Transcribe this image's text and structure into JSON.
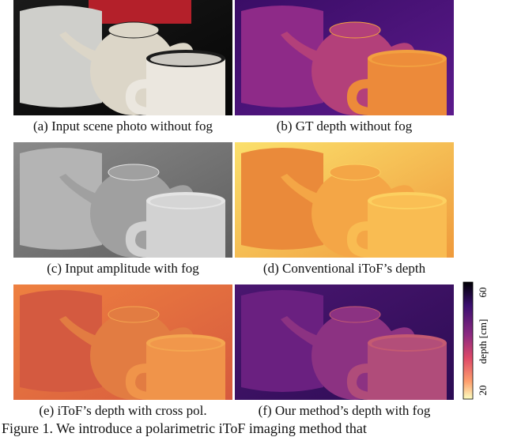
{
  "panels": [
    {
      "caption": "(a) Input scene photo without fog"
    },
    {
      "caption": "(b) GT depth without fog"
    },
    {
      "caption": "(c) Input amplitude with fog"
    },
    {
      "caption": "(d) Conventional iToF’s depth"
    },
    {
      "caption": "(e) iToF’s depth with cross pol."
    },
    {
      "caption": "(f) Our method’s depth with fog"
    }
  ],
  "colorbar": {
    "label": "depth [cm]",
    "ticks": [
      60,
      20
    ]
  },
  "figure_caption": "Figure 1. We introduce a polarimetric iToF imaging method that"
}
